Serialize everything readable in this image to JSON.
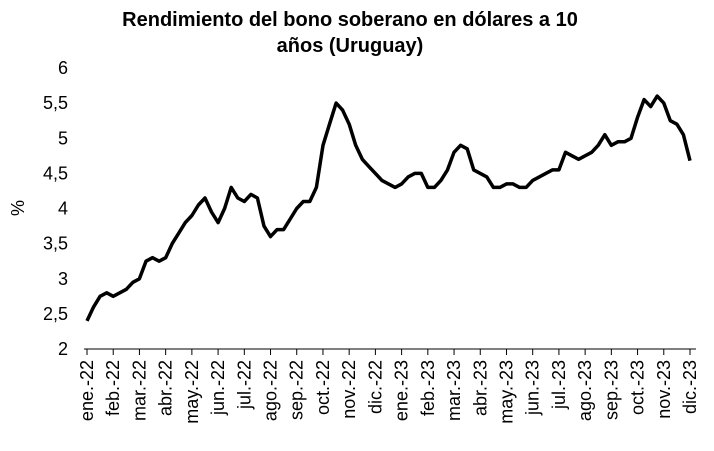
{
  "chart_data": {
    "type": "line",
    "title": "Rendimiento del bono soberano en dólares a 10 años (Uruguay)",
    "title_lines": [
      "Rendimiento del bono soberano en dólares a 10",
      "años (Uruguay)"
    ],
    "y_label": "%",
    "categories": [
      "ene.-22",
      null,
      null,
      null,
      "feb.-22",
      null,
      null,
      null,
      "mar.-22",
      null,
      null,
      null,
      "abr.-22",
      null,
      null,
      null,
      "may.-22",
      null,
      null,
      null,
      "jun.-22",
      null,
      null,
      null,
      "jul.-22",
      null,
      null,
      null,
      "ago.-22",
      null,
      null,
      null,
      "sep.-22",
      null,
      null,
      null,
      "oct.-22",
      null,
      null,
      null,
      "nov.-22",
      null,
      null,
      null,
      "dic.-22",
      null,
      null,
      null,
      "ene.-23",
      null,
      null,
      null,
      "feb.-23",
      null,
      null,
      null,
      "mar.-23",
      null,
      null,
      null,
      "abr.-23",
      null,
      null,
      null,
      "may.-23",
      null,
      null,
      null,
      "jun.-23",
      null,
      null,
      null,
      "jul.-23",
      null,
      null,
      null,
      "ago.-23",
      null,
      null,
      null,
      "sep.-23",
      null,
      null,
      null,
      "oct.-23",
      null,
      null,
      null,
      "nov.-23",
      null,
      null,
      null,
      "dic.-23"
    ],
    "series": [
      {
        "name": "Rendimiento",
        "color": "#000000",
        "values": [
          2.4,
          2.6,
          2.75,
          2.8,
          2.75,
          2.8,
          2.85,
          2.95,
          3.0,
          3.25,
          3.3,
          3.25,
          3.3,
          3.5,
          3.65,
          3.8,
          3.9,
          4.05,
          4.15,
          3.95,
          3.8,
          4.0,
          4.3,
          4.15,
          4.1,
          4.2,
          4.15,
          3.75,
          3.6,
          3.7,
          3.7,
          3.85,
          4.0,
          4.1,
          4.1,
          4.3,
          4.9,
          5.2,
          5.5,
          5.4,
          5.2,
          4.9,
          4.7,
          4.6,
          4.5,
          4.4,
          4.35,
          4.3,
          4.35,
          4.45,
          4.5,
          4.5,
          4.3,
          4.3,
          4.4,
          4.55,
          4.8,
          4.9,
          4.85,
          4.55,
          4.5,
          4.45,
          4.3,
          4.3,
          4.35,
          4.35,
          4.3,
          4.3,
          4.4,
          4.45,
          4.5,
          4.55,
          4.55,
          4.8,
          4.75,
          4.7,
          4.75,
          4.8,
          4.9,
          5.05,
          4.9,
          4.95,
          4.95,
          5.0,
          5.3,
          5.55,
          5.45,
          5.6,
          5.5,
          5.25,
          5.2,
          5.05,
          4.68
        ]
      }
    ],
    "ylim": [
      2,
      6
    ],
    "yticks": [
      2,
      {
        "value": 2.5,
        "label": "2,5"
      },
      3,
      {
        "value": 3.5,
        "label": "3,5"
      },
      4,
      {
        "value": 4.5,
        "label": "4,5"
      },
      5,
      {
        "value": 5.5,
        "label": "5,5"
      },
      6
    ],
    "grid": false
  }
}
